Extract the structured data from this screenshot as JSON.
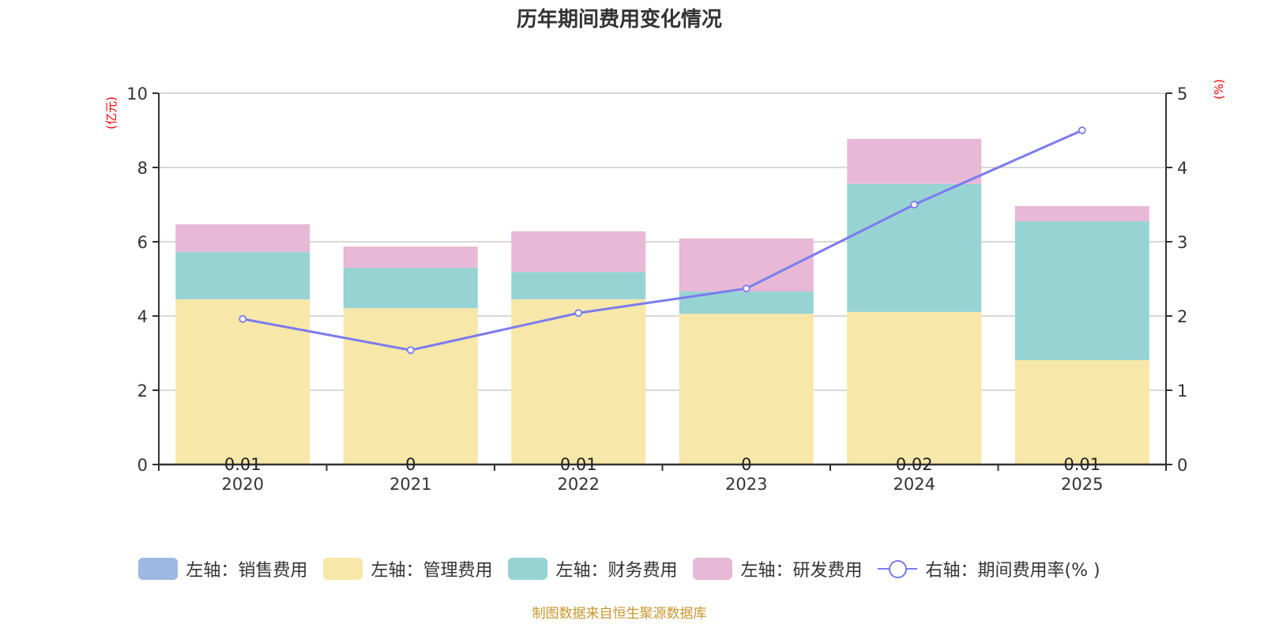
{
  "chart_data": {
    "type": "bar",
    "stacked": true,
    "title": "历年期间费用变化情况",
    "categories": [
      "2020",
      "2021",
      "2022",
      "2023",
      "2024",
      "2025"
    ],
    "left_axis": {
      "label": "(亿元)",
      "ylim": [
        0,
        10
      ],
      "ticks": [
        "0",
        "2",
        "4",
        "6",
        "8",
        "10"
      ]
    },
    "right_axis": {
      "label": "(%)",
      "ylim": [
        0,
        5
      ],
      "ticks": [
        "0",
        "1",
        "2",
        "3",
        "4",
        "5"
      ]
    },
    "series": [
      {
        "name": "左轴：销售费用",
        "axis": "left",
        "type": "bar",
        "color": "#9db8e2",
        "values": [
          0.01,
          0,
          0.01,
          0,
          0.02,
          0.01
        ],
        "labels": [
          "0.01",
          "0",
          "0.01",
          "0",
          "0.02",
          "0.01"
        ]
      },
      {
        "name": "左轴：管理费用",
        "axis": "left",
        "type": "bar",
        "color": "#f7e7a9",
        "values": [
          4.44,
          4.21,
          4.44,
          4.06,
          4.09,
          2.8
        ]
      },
      {
        "name": "左轴：财务费用",
        "axis": "left",
        "type": "bar",
        "color": "#98d3d4",
        "values": [
          1.28,
          1.09,
          0.74,
          0.6,
          3.45,
          3.74
        ]
      },
      {
        "name": "左轴：研发费用",
        "axis": "left",
        "type": "bar",
        "color": "#e7b9d7",
        "values": [
          0.74,
          0.57,
          1.09,
          1.43,
          1.21,
          0.41
        ]
      },
      {
        "name": "右轴：期间费用率(% )",
        "axis": "right",
        "type": "line",
        "color": "#7b7bef",
        "values": [
          1.96,
          1.54,
          2.04,
          2.37,
          3.5,
          4.5
        ]
      }
    ],
    "grid": true,
    "legend_position": "bottom"
  },
  "source": "制图数据来自恒生聚源数据库"
}
